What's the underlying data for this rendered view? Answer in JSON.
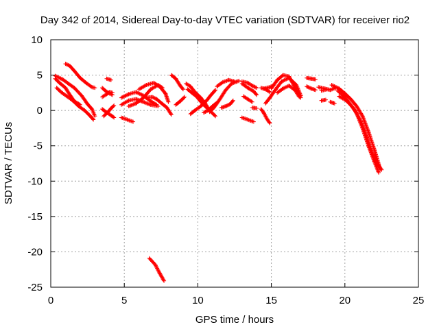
{
  "chart_data": {
    "type": "scatter",
    "title": "Day 342 of 2014, Sidereal Day-to-day VTEC variation (SDTVAR) for receiver rio2",
    "xlabel": "GPS time / hours",
    "ylabel": "SDTVAR / TECUs",
    "xlim": [
      0,
      25
    ],
    "ylim": [
      -25,
      10
    ],
    "xticks": [
      0,
      5,
      10,
      15,
      20,
      25
    ],
    "yticks": [
      -25,
      -20,
      -15,
      -10,
      -5,
      0,
      5,
      10
    ],
    "grid": true,
    "marker": "+",
    "series_color": "#ff0000",
    "tracks": [
      [
        [
          0.3,
          4.5
        ],
        [
          0.6,
          3.9
        ],
        [
          1.0,
          3.2
        ],
        [
          1.3,
          2.2
        ],
        [
          1.6,
          1.3
        ],
        [
          2.0,
          0.8
        ]
      ],
      [
        [
          0.4,
          3.2
        ],
        [
          0.7,
          2.6
        ],
        [
          1.1,
          2.0
        ],
        [
          1.5,
          1.4
        ],
        [
          1.9,
          0.6
        ],
        [
          2.3,
          0.0
        ],
        [
          2.6,
          -0.6
        ],
        [
          2.9,
          -1.3
        ]
      ],
      [
        [
          1.0,
          6.6
        ],
        [
          1.3,
          6.3
        ],
        [
          1.6,
          5.6
        ],
        [
          2.0,
          4.6
        ],
        [
          2.4,
          3.9
        ],
        [
          2.8,
          3.3
        ],
        [
          3.0,
          3.2
        ]
      ],
      [
        [
          0.3,
          4.9
        ],
        [
          0.8,
          4.4
        ],
        [
          1.2,
          3.8
        ],
        [
          1.6,
          3.2
        ],
        [
          2.1,
          2.1
        ],
        [
          2.5,
          0.9
        ],
        [
          2.8,
          0.2
        ],
        [
          3.0,
          -0.8
        ]
      ],
      [
        [
          3.5,
          3.2
        ],
        [
          3.7,
          2.8
        ],
        [
          4.0,
          2.4
        ],
        [
          4.2,
          2.2
        ]
      ],
      [
        [
          3.5,
          1.9
        ],
        [
          3.8,
          2.3
        ],
        [
          4.0,
          2.6
        ],
        [
          4.2,
          2.5
        ]
      ],
      [
        [
          3.5,
          0.2
        ],
        [
          3.8,
          -0.3
        ],
        [
          4.1,
          -0.7
        ],
        [
          4.3,
          -1.0
        ]
      ],
      [
        [
          3.6,
          -0.8
        ],
        [
          3.9,
          -0.2
        ],
        [
          4.1,
          0.3
        ],
        [
          4.3,
          0.7
        ]
      ],
      [
        [
          3.8,
          4.5
        ],
        [
          4.1,
          4.3
        ]
      ],
      [
        [
          4.8,
          1.8
        ],
        [
          5.3,
          2.3
        ],
        [
          5.8,
          2.6
        ],
        [
          6.3,
          2.1
        ],
        [
          6.8,
          1.3
        ],
        [
          7.2,
          0.8
        ]
      ],
      [
        [
          4.8,
          0.8
        ],
        [
          5.3,
          1.4
        ],
        [
          5.8,
          1.6
        ],
        [
          6.3,
          1.2
        ],
        [
          6.8,
          0.8
        ],
        [
          7.3,
          0.6
        ]
      ],
      [
        [
          5.3,
          0.6
        ],
        [
          5.8,
          1.0
        ],
        [
          6.3,
          1.8
        ],
        [
          6.8,
          3.0
        ],
        [
          7.3,
          3.6
        ],
        [
          7.6,
          3.2
        ]
      ],
      [
        [
          6.0,
          3.0
        ],
        [
          6.5,
          3.6
        ],
        [
          7.0,
          3.9
        ],
        [
          7.4,
          3.4
        ],
        [
          7.8,
          2.4
        ],
        [
          8.0,
          1.2
        ]
      ],
      [
        [
          6.5,
          1.8
        ],
        [
          6.9,
          1.9
        ],
        [
          7.2,
          1.6
        ],
        [
          7.6,
          0.9
        ],
        [
          7.9,
          0.4
        ],
        [
          8.2,
          -0.6
        ]
      ],
      [
        [
          4.8,
          -1.0
        ],
        [
          5.2,
          -1.3
        ],
        [
          5.6,
          -1.6
        ]
      ],
      [
        [
          8.2,
          5.0
        ],
        [
          8.5,
          4.5
        ],
        [
          8.8,
          3.5
        ],
        [
          9.0,
          3.0
        ]
      ],
      [
        [
          8.5,
          0.8
        ],
        [
          8.8,
          1.3
        ],
        [
          9.1,
          1.9
        ]
      ],
      [
        [
          9.2,
          3.8
        ],
        [
          9.5,
          3.4
        ],
        [
          9.8,
          2.6
        ],
        [
          10.2,
          1.8
        ],
        [
          10.5,
          1.0
        ],
        [
          10.8,
          0.0
        ],
        [
          11.2,
          -0.8
        ]
      ],
      [
        [
          9.3,
          3.0
        ],
        [
          9.6,
          2.5
        ],
        [
          9.9,
          2.0
        ],
        [
          10.3,
          1.0
        ],
        [
          10.7,
          0.2
        ]
      ],
      [
        [
          9.5,
          -0.5
        ],
        [
          9.8,
          0.0
        ],
        [
          10.2,
          0.6
        ],
        [
          10.6,
          1.4
        ],
        [
          10.9,
          2.2
        ],
        [
          11.2,
          2.9
        ]
      ],
      [
        [
          10.8,
          -0.2
        ],
        [
          11.1,
          0.4
        ],
        [
          11.5,
          1.6
        ],
        [
          11.9,
          2.9
        ],
        [
          12.3,
          3.8
        ],
        [
          12.8,
          4.2
        ]
      ],
      [
        [
          10.4,
          -0.3
        ],
        [
          10.7,
          0.0
        ],
        [
          11.0,
          0.6
        ],
        [
          11.3,
          1.1
        ]
      ],
      [
        [
          11.3,
          3.4
        ],
        [
          11.7,
          4.0
        ],
        [
          12.1,
          4.3
        ],
        [
          12.5,
          4.1
        ]
      ],
      [
        [
          11.6,
          0.4
        ],
        [
          11.9,
          0.6
        ],
        [
          12.2,
          0.9
        ],
        [
          12.4,
          1.4
        ]
      ],
      [
        [
          13.0,
          3.8
        ],
        [
          13.4,
          3.2
        ],
        [
          13.8,
          2.7
        ],
        [
          14.0,
          2.2
        ]
      ],
      [
        [
          13.0,
          4.1
        ],
        [
          13.4,
          3.9
        ],
        [
          13.7,
          3.5
        ],
        [
          14.0,
          3.2
        ]
      ],
      [
        [
          13.1,
          2.0
        ],
        [
          13.4,
          1.6
        ],
        [
          13.7,
          1.2
        ]
      ],
      [
        [
          13.0,
          -1.0
        ],
        [
          13.4,
          -1.3
        ],
        [
          13.8,
          -1.6
        ]
      ],
      [
        [
          13.7,
          0.4
        ],
        [
          14.0,
          0.3
        ]
      ],
      [
        [
          14.3,
          0.2
        ],
        [
          14.5,
          -0.4
        ],
        [
          14.7,
          -1.2
        ],
        [
          14.9,
          -1.8
        ]
      ],
      [
        [
          14.5,
          3.1
        ],
        [
          14.9,
          3.3
        ],
        [
          15.1,
          3.5
        ]
      ],
      [
        [
          14.3,
          3.2
        ],
        [
          14.6,
          3.0
        ],
        [
          14.9,
          2.6
        ]
      ],
      [
        [
          14.6,
          1.0
        ],
        [
          14.9,
          1.8
        ],
        [
          15.3,
          3.0
        ],
        [
          15.7,
          4.1
        ],
        [
          16.2,
          4.6
        ],
        [
          16.7,
          3.6
        ],
        [
          17.0,
          2.1
        ]
      ],
      [
        [
          15.0,
          3.1
        ],
        [
          15.4,
          4.3
        ],
        [
          15.8,
          5.0
        ],
        [
          16.2,
          4.8
        ],
        [
          16.6,
          3.3
        ],
        [
          17.0,
          1.8
        ]
      ],
      [
        [
          15.4,
          2.5
        ],
        [
          15.8,
          3.1
        ],
        [
          16.2,
          3.5
        ],
        [
          16.6,
          2.9
        ],
        [
          16.9,
          1.9
        ]
      ],
      [
        [
          17.4,
          4.6
        ],
        [
          17.7,
          4.5
        ],
        [
          18.0,
          4.4
        ]
      ],
      [
        [
          17.4,
          3.4
        ],
        [
          17.7,
          3.1
        ],
        [
          18.0,
          2.9
        ]
      ],
      [
        [
          18.2,
          3.3
        ],
        [
          18.6,
          3.1
        ],
        [
          19.0,
          2.9
        ],
        [
          19.4,
          3.2
        ]
      ],
      [
        [
          18.4,
          1.4
        ],
        [
          18.7,
          1.5
        ]
      ],
      [
        [
          18.4,
          2.8
        ],
        [
          18.8,
          3.0
        ]
      ],
      [
        [
          19.0,
          1.2
        ],
        [
          19.3,
          1.0
        ]
      ],
      [
        [
          19.1,
          3.6
        ],
        [
          19.6,
          3.1
        ],
        [
          20.0,
          2.4
        ],
        [
          20.4,
          1.6
        ],
        [
          20.8,
          0.6
        ],
        [
          21.2,
          -0.8
        ],
        [
          21.6,
          -3.0
        ],
        [
          22.0,
          -5.5
        ],
        [
          22.4,
          -8.3
        ]
      ],
      [
        [
          19.5,
          2.8
        ],
        [
          20.0,
          1.9
        ],
        [
          20.4,
          0.8
        ],
        [
          20.8,
          -0.4
        ],
        [
          21.2,
          -2.5
        ],
        [
          21.6,
          -5.0
        ],
        [
          22.0,
          -7.2
        ],
        [
          22.3,
          -8.8
        ]
      ],
      [
        [
          19.6,
          2.0
        ],
        [
          20.1,
          1.4
        ],
        [
          20.6,
          0.3
        ],
        [
          21.1,
          -1.6
        ],
        [
          21.5,
          -3.8
        ],
        [
          21.9,
          -6.2
        ],
        [
          22.3,
          -7.8
        ],
        [
          22.5,
          -8.4
        ]
      ],
      [
        [
          6.7,
          -20.9
        ],
        [
          7.1,
          -21.8
        ],
        [
          7.4,
          -23.0
        ],
        [
          7.7,
          -24.1
        ]
      ]
    ]
  }
}
